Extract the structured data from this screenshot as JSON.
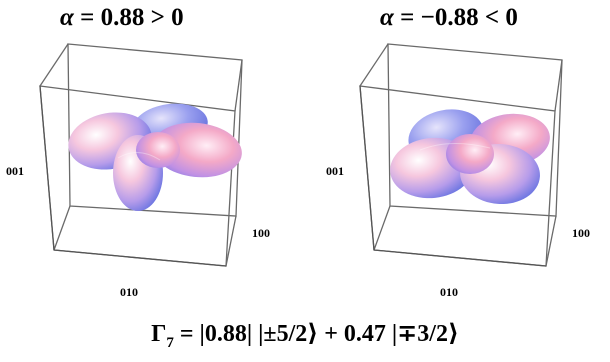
{
  "panels": [
    {
      "title_prefix": "α",
      "title_rest": " = 0.88 > 0",
      "axis_001": "001",
      "axis_010": "010",
      "axis_100": "100"
    },
    {
      "title_prefix": "α",
      "title_rest": " = −0.88 < 0",
      "axis_001": "001",
      "axis_010": "010",
      "axis_100": "100"
    }
  ],
  "formula": {
    "gamma": "Γ",
    "sub": "7",
    "rest": " = |0.88| |±5/2⟩ + 0.47 |∓3/2⟩"
  },
  "colors": {
    "box_edges": "#555555",
    "lobe_light": "#fbe6f0",
    "lobe_pink": "#f3a6c4",
    "lobe_blue": "#6f78e8",
    "lobe_purple": "#a88fe6"
  }
}
